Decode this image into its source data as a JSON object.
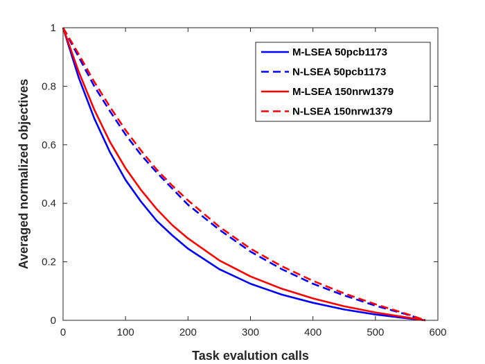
{
  "chart_data": {
    "type": "line",
    "title": "",
    "xlabel": "Task evalution calls",
    "ylabel": "Averaged normalized objectives",
    "xlim": [
      0,
      600
    ],
    "ylim": [
      0,
      1
    ],
    "xticks": [
      0,
      100,
      200,
      300,
      400,
      500,
      600
    ],
    "yticks": [
      0,
      0.2,
      0.4,
      0.6,
      0.8,
      1
    ],
    "xtick_labels": [
      "0",
      "100",
      "200",
      "300",
      "400",
      "500",
      "600"
    ],
    "ytick_labels": [
      "0",
      "0.2",
      "0.4",
      "0.6",
      "0.8",
      "1"
    ],
    "legend_position": "top-right",
    "grid": false,
    "series": [
      {
        "name": "M-LSEA 50pcb1173",
        "color": "#0000ff",
        "dashed": false,
        "x": [
          0,
          25,
          50,
          75,
          100,
          125,
          150,
          175,
          200,
          250,
          300,
          350,
          400,
          450,
          500,
          550,
          580
        ],
        "y": [
          1.0,
          0.83,
          0.69,
          0.575,
          0.48,
          0.405,
          0.34,
          0.29,
          0.245,
          0.175,
          0.125,
          0.088,
          0.06,
          0.037,
          0.02,
          0.007,
          0.0
        ]
      },
      {
        "name": "N-LSEA 50pcb1173",
        "color": "#0000ff",
        "dashed": true,
        "x": [
          0,
          25,
          50,
          75,
          100,
          125,
          150,
          175,
          200,
          250,
          300,
          350,
          400,
          450,
          500,
          550,
          580
        ],
        "y": [
          1.0,
          0.9,
          0.8,
          0.715,
          0.635,
          0.565,
          0.505,
          0.45,
          0.395,
          0.31,
          0.235,
          0.175,
          0.125,
          0.085,
          0.05,
          0.02,
          0.0
        ]
      },
      {
        "name": "M-LSEA 150nrw1379",
        "color": "#ff0000",
        "dashed": false,
        "x": [
          0,
          25,
          50,
          75,
          100,
          125,
          150,
          175,
          200,
          250,
          300,
          350,
          400,
          450,
          500,
          550,
          580
        ],
        "y": [
          1.0,
          0.85,
          0.72,
          0.61,
          0.52,
          0.445,
          0.38,
          0.325,
          0.28,
          0.205,
          0.15,
          0.108,
          0.075,
          0.048,
          0.027,
          0.01,
          0.0
        ]
      },
      {
        "name": "N-LSEA 150nrw1379",
        "color": "#ff0000",
        "dashed": true,
        "x": [
          0,
          25,
          50,
          75,
          100,
          125,
          150,
          175,
          200,
          250,
          300,
          350,
          400,
          450,
          500,
          550,
          580
        ],
        "y": [
          1.0,
          0.91,
          0.815,
          0.73,
          0.65,
          0.58,
          0.515,
          0.46,
          0.41,
          0.32,
          0.245,
          0.185,
          0.135,
          0.092,
          0.055,
          0.022,
          0.0
        ]
      }
    ]
  }
}
